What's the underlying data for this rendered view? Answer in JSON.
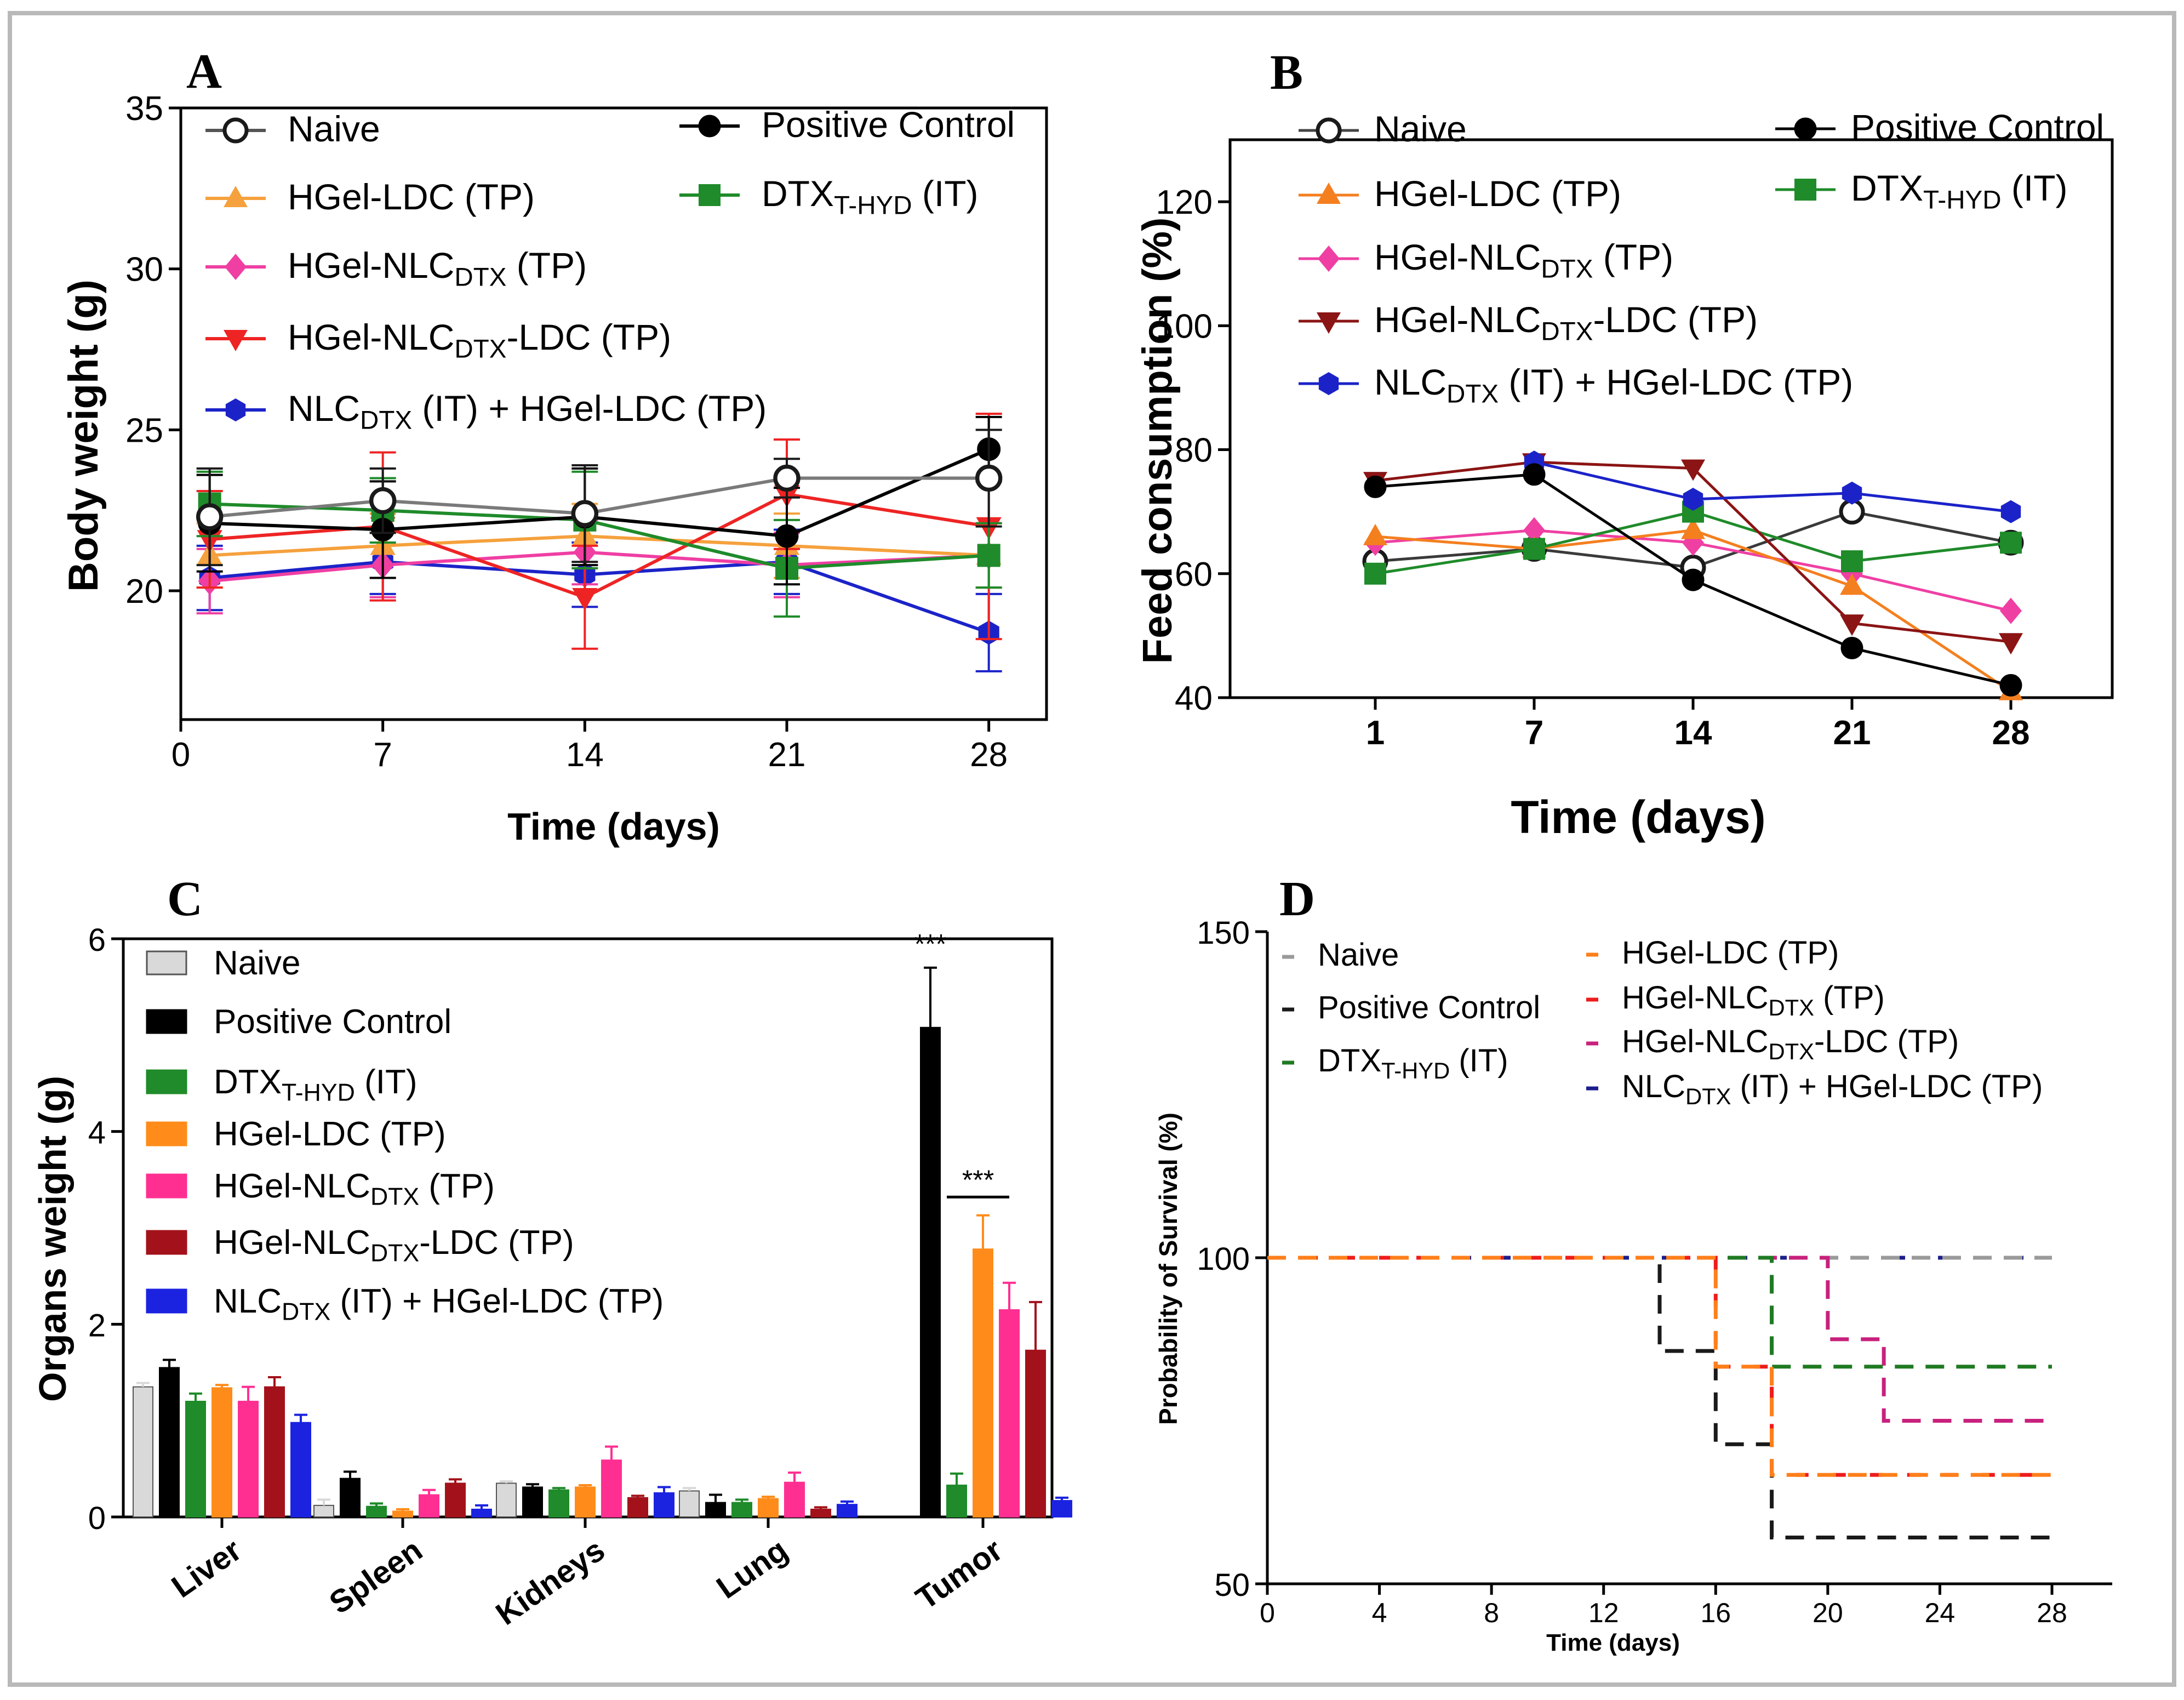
{
  "chart_data": [
    {
      "id": "A",
      "type": "line",
      "panel_label": "A",
      "xlabel": "Time (days)",
      "ylabel": "Body weight (g)",
      "xlim": [
        0,
        30
      ],
      "ylim": [
        16,
        35
      ],
      "xticks": [
        0,
        7,
        14,
        21,
        28
      ],
      "yticks": [
        20,
        25,
        30,
        35
      ],
      "x": [
        1,
        7,
        14,
        21,
        28
      ],
      "legend": [
        {
          "parts": [
            "Naive"
          ],
          "sub": "",
          "color": "#1a1a1a",
          "marker": "open-circle"
        },
        {
          "parts": [
            "Positive Control"
          ],
          "sub": "",
          "color": "#000000",
          "marker": "circle"
        },
        {
          "parts": [
            "HGel-LDC (TP)"
          ],
          "sub": "",
          "color": "#f5a13d",
          "marker": "triangle"
        },
        {
          "parts": [
            "DTX",
            "T-HYD",
            " (IT)"
          ],
          "color": "#1f8b2a",
          "marker": "square"
        },
        {
          "parts": [
            "HGel-NLC",
            "DTX",
            " (TP)"
          ],
          "color": "#ef3fa3",
          "marker": "diamond"
        },
        {
          "parts": [
            "HGel-NLC",
            "DTX",
            "-LDC (TP)"
          ],
          "color": "#ee2424",
          "marker": "triangle-down"
        },
        {
          "parts": [
            "NLC",
            "DTX",
            " (IT) + HGel-LDC (TP)"
          ],
          "color": "#1b23c8",
          "marker": "hexagon"
        }
      ],
      "series": [
        {
          "name": "Naive",
          "values": [
            22.3,
            22.8,
            22.4,
            23.5,
            23.5
          ],
          "errors": [
            1.5,
            1.0,
            1.5,
            0.6,
            1.5
          ]
        },
        {
          "name": "Positive Control",
          "values": [
            22.1,
            21.9,
            22.3,
            21.7,
            24.4
          ],
          "errors": [
            1.5,
            1.5,
            1.5,
            1.5,
            1.0
          ]
        },
        {
          "name": "HGel-LDC (TP)",
          "values": [
            21.1,
            21.4,
            21.7,
            21.4,
            21.1
          ],
          "errors": [
            1.0,
            1.0,
            1.0,
            1.0,
            1.0
          ]
        },
        {
          "name": "DTX T-HYD (IT)",
          "values": [
            22.7,
            22.5,
            22.2,
            20.7,
            21.1
          ],
          "errors": [
            1.0,
            1.0,
            1.5,
            1.5,
            1.0
          ]
        },
        {
          "name": "HGel-NLC DTX (TP)",
          "values": [
            20.3,
            20.8,
            21.2,
            20.8,
            21.1
          ],
          "errors": [
            1.0,
            1.0,
            1.0,
            1.0,
            1.0
          ]
        },
        {
          "name": "HGel-NLC DTX-LDC (TP)",
          "values": [
            21.6,
            22.0,
            19.8,
            23.0,
            22.0
          ],
          "errors": [
            1.5,
            2.3,
            1.6,
            1.7,
            3.5
          ]
        },
        {
          "name": "NLC DTX (IT) + HGel-LDC (TP)",
          "values": [
            20.4,
            20.9,
            20.5,
            20.9,
            18.7
          ],
          "errors": [
            1.0,
            1.0,
            1.0,
            1.0,
            1.2
          ]
        }
      ]
    },
    {
      "id": "B",
      "type": "line",
      "panel_label": "B",
      "xlabel": "Time (days)",
      "ylabel": "Feed consumption (%)",
      "categories": [
        "1",
        "7",
        "14",
        "21",
        "28"
      ],
      "ylim": [
        40,
        130
      ],
      "yticks": [
        40,
        60,
        80,
        100,
        120
      ],
      "legend": [
        {
          "parts": [
            "Naive"
          ],
          "color": "#1a1a1a",
          "marker": "open-circle"
        },
        {
          "parts": [
            "Positive Control"
          ],
          "color": "#000000",
          "marker": "circle"
        },
        {
          "parts": [
            "HGel-LDC (TP)"
          ],
          "color": "#f47f1f",
          "marker": "triangle"
        },
        {
          "parts": [
            "DTX",
            "T-HYD",
            " (IT)"
          ],
          "color": "#1f8b2a",
          "marker": "square"
        },
        {
          "parts": [
            "HGel-NLC",
            "DTX",
            " (TP)"
          ],
          "color": "#ef3fa3",
          "marker": "diamond"
        },
        {
          "parts": [
            "HGel-NLC",
            "DTX",
            "-LDC (TP)"
          ],
          "color": "#8b1414",
          "marker": "triangle-down"
        },
        {
          "parts": [
            "NLC",
            "DTX",
            " (IT) + HGel-LDC (TP)"
          ],
          "color": "#1b23c8",
          "marker": "hexagon"
        }
      ],
      "series": [
        {
          "name": "Naive",
          "values": [
            62,
            64,
            61,
            70,
            65
          ]
        },
        {
          "name": "Positive Control",
          "values": [
            74,
            76,
            59,
            48,
            42
          ]
        },
        {
          "name": "HGel-LDC (TP)",
          "values": [
            66,
            64,
            67,
            58,
            41
          ]
        },
        {
          "name": "DTX T-HYD (IT)",
          "values": [
            60,
            64,
            70,
            62,
            65
          ]
        },
        {
          "name": "HGel-NLC DTX (TP)",
          "values": [
            65,
            67,
            65,
            60,
            54
          ]
        },
        {
          "name": "HGel-NLC DTX-LDC (TP)",
          "values": [
            75,
            78,
            77,
            52,
            49
          ]
        },
        {
          "name": "NLC DTX (IT) + HGel-LDC (TP)",
          "values": [
            null,
            78,
            72,
            73,
            70
          ]
        }
      ]
    },
    {
      "id": "C",
      "type": "bar",
      "panel_label": "C",
      "ylabel": "Organs weight (g)",
      "categories": [
        "Liver",
        "Spleen",
        "Kidneys",
        "Lung",
        "Tumor"
      ],
      "ylim": [
        0,
        6
      ],
      "yticks": [
        0,
        2,
        4,
        6
      ],
      "annotations": [
        "***",
        "***"
      ],
      "legend": [
        {
          "parts": [
            "Naive"
          ],
          "color": "#d9d9d9"
        },
        {
          "parts": [
            "Positive Control"
          ],
          "color": "#000000"
        },
        {
          "parts": [
            "DTX",
            "T-HYD",
            " (IT)"
          ],
          "color": "#1f8b2a"
        },
        {
          "parts": [
            "HGel-LDC (TP)"
          ],
          "color": "#ff8c1a"
        },
        {
          "parts": [
            "HGel-NLC",
            "DTX",
            " (TP)"
          ],
          "color": "#ff2f92"
        },
        {
          "parts": [
            "HGel-NLC",
            "DTX",
            "-LDC (TP)"
          ],
          "color": "#a3121a"
        },
        {
          "parts": [
            "NLC",
            "DTX",
            " (IT) + HGel-LDC (TP)"
          ],
          "color": "#1b23e0"
        }
      ],
      "series": [
        {
          "name": "Naive",
          "values": [
            1.35,
            0.12,
            0.35,
            0.27,
            0
          ],
          "errors": [
            0.04,
            0.06,
            0.02,
            0.03,
            0
          ]
        },
        {
          "name": "Positive Control",
          "values": [
            1.55,
            0.4,
            0.31,
            0.15,
            5.08
          ],
          "errors": [
            0.08,
            0.07,
            0.03,
            0.08,
            0.62
          ]
        },
        {
          "name": "DTX T-HYD (IT)",
          "values": [
            1.2,
            0.11,
            0.28,
            0.15,
            0.33
          ],
          "errors": [
            0.08,
            0.03,
            0.02,
            0.03,
            0.12
          ]
        },
        {
          "name": "HGel-LDC (TP)",
          "values": [
            1.34,
            0.06,
            0.31,
            0.19,
            2.78
          ],
          "errors": [
            0.03,
            0.02,
            0.02,
            0.02,
            0.35
          ]
        },
        {
          "name": "HGel-NLC DTX (TP)",
          "values": [
            1.2,
            0.23,
            0.59,
            0.36,
            2.15
          ],
          "errors": [
            0.15,
            0.05,
            0.14,
            0.1,
            0.28
          ]
        },
        {
          "name": "HGel-NLC DTX-LDC (TP)",
          "values": [
            1.35,
            0.35,
            0.2,
            0.08,
            1.73
          ],
          "errors": [
            0.1,
            0.04,
            0.02,
            0.02,
            0.5
          ]
        },
        {
          "name": "NLC DTX (IT) + HGel-LDC (TP)",
          "values": [
            0.98,
            0.08,
            0.25,
            0.13,
            0.17
          ],
          "errors": [
            0.08,
            0.04,
            0.06,
            0.03,
            0.03
          ]
        }
      ]
    },
    {
      "id": "D",
      "type": "line",
      "subtype": "step",
      "panel_label": "D",
      "xlabel": "Time (days)",
      "ylabel": "Probability of Survival (%)",
      "xlim": [
        0,
        30
      ],
      "xticks": [
        0,
        4,
        8,
        12,
        16,
        20,
        24,
        28
      ],
      "ylim": [
        50,
        150
      ],
      "yticks": [
        50,
        100,
        150
      ],
      "legend": [
        {
          "parts": [
            "Naive"
          ],
          "color": "#9a9a9a"
        },
        {
          "parts": [
            "Positive Control"
          ],
          "color": "#1a1a1a"
        },
        {
          "parts": [
            "DTX",
            "T-HYD",
            " (IT)"
          ],
          "color": "#1f7a22"
        },
        {
          "parts": [
            "HGel-LDC (TP)"
          ],
          "color": "#ff7f1a"
        },
        {
          "parts": [
            "HGel-NLC",
            "DTX",
            " (TP)"
          ],
          "color": "#ee1c1c"
        },
        {
          "parts": [
            "HGel-NLC",
            "DTX",
            "-LDC (TP)"
          ],
          "color": "#c8217d"
        },
        {
          "parts": [
            "NLC",
            "DTX",
            " (IT) + HGel-LDC (TP)"
          ],
          "color": "#1b1e8a"
        }
      ],
      "series": [
        {
          "name": "NLC DTX (IT) + HGel-LDC (TP)",
          "x": [
            0,
            28
          ],
          "values": [
            100,
            100
          ]
        },
        {
          "name": "Naive",
          "x": [
            0,
            28
          ],
          "values": [
            100,
            100
          ]
        },
        {
          "name": "HGel-NLC DTX-LDC (TP)",
          "x": [
            0,
            20,
            22,
            28
          ],
          "values": [
            100,
            87.5,
            75,
            75
          ]
        },
        {
          "name": "DTX T-HYD (IT)",
          "x": [
            0,
            18,
            28
          ],
          "values": [
            100,
            83.3,
            83.3
          ]
        },
        {
          "name": "Positive Control",
          "x": [
            0,
            14,
            16,
            18,
            28
          ],
          "values": [
            100,
            85.7,
            71.4,
            57.1,
            57.1
          ]
        },
        {
          "name": "HGel-NLC DTX (TP)",
          "x": [
            0,
            16,
            18,
            28
          ],
          "values": [
            100,
            83.3,
            66.7,
            66.7
          ]
        },
        {
          "name": "HGel-LDC (TP)",
          "x": [
            0,
            16,
            18,
            28
          ],
          "values": [
            100,
            83.3,
            66.7,
            66.7
          ]
        }
      ]
    }
  ]
}
